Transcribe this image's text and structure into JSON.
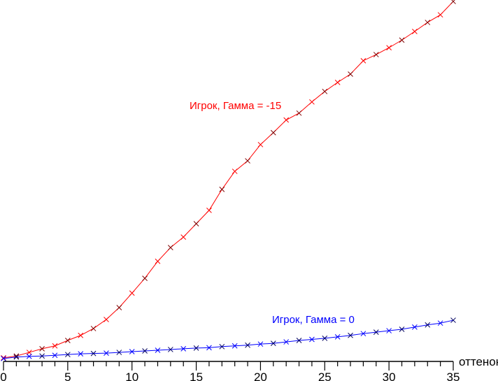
{
  "chart_data": {
    "type": "line",
    "title": "",
    "xlabel": "оттенок",
    "ylabel": "",
    "xlim": [
      0,
      35
    ],
    "ylim": [
      0,
      100
    ],
    "x_ticks": [
      "0",
      "5",
      "10",
      "15",
      "20",
      "25",
      "30",
      "35"
    ],
    "grid": false,
    "x": [
      0,
      1,
      2,
      3,
      4,
      5,
      6,
      7,
      8,
      9,
      10,
      11,
      12,
      13,
      14,
      15,
      16,
      17,
      18,
      19,
      20,
      21,
      22,
      23,
      24,
      25,
      26,
      27,
      28,
      29,
      30,
      31,
      32,
      33,
      34,
      35
    ],
    "series": [
      {
        "name": "Игрок, Гамма = -15",
        "color": "#ff0000",
        "values": [
          1.0,
          1.5,
          2.5,
          3.5,
          4.3,
          5.8,
          7.2,
          9.1,
          11.6,
          14.9,
          18.9,
          23.0,
          27.7,
          31.5,
          34.4,
          38.1,
          41.8,
          47.6,
          52.6,
          55.5,
          60.0,
          63.3,
          66.8,
          68.7,
          71.8,
          74.7,
          77.2,
          79.5,
          83.2,
          84.9,
          86.8,
          88.9,
          91.3,
          93.8,
          95.9,
          99.6
        ]
      },
      {
        "name": "Игрок, Гамма = 0",
        "color": "#0000ff",
        "values": [
          0.8,
          1.2,
          1.4,
          1.5,
          1.7,
          1.9,
          2.1,
          2.2,
          2.3,
          2.5,
          2.7,
          2.9,
          3.1,
          3.3,
          3.5,
          3.7,
          3.8,
          4.1,
          4.3,
          4.5,
          4.8,
          5.0,
          5.4,
          5.8,
          6.1,
          6.4,
          6.8,
          7.2,
          7.7,
          8.1,
          8.5,
          8.9,
          9.5,
          10.1,
          10.6,
          11.4
        ]
      }
    ]
  }
}
